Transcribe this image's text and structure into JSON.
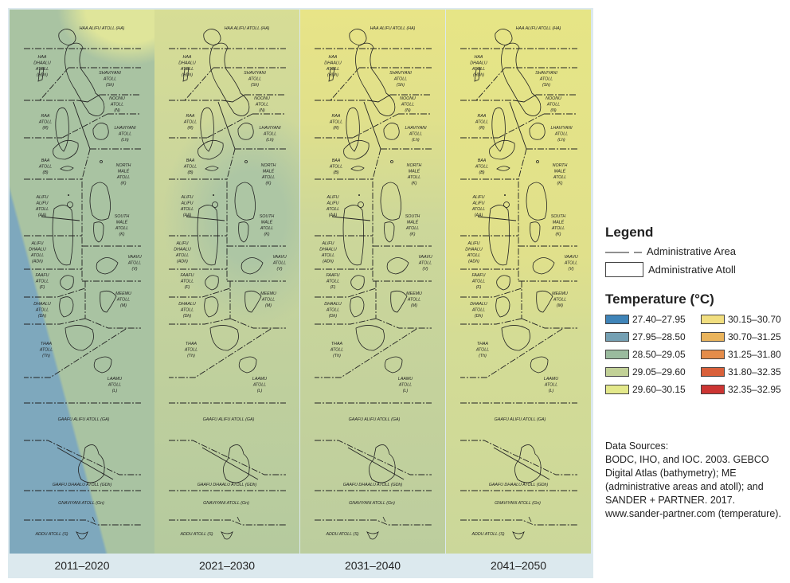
{
  "periods": [
    "2011–2020",
    "2021–2030",
    "2031–2040",
    "2041–2050"
  ],
  "atolls": [
    {
      "lines": [
        "HAA ALIFU ATOLL (HA)"
      ]
    },
    {
      "lines": [
        "HAA",
        "DHAALU",
        "ATOLL",
        "(HDh)"
      ]
    },
    {
      "lines": [
        "SHAVIYANI",
        "ATOLL",
        "(Sh)"
      ]
    },
    {
      "lines": [
        "NOONU",
        "ATOLL",
        "(N)"
      ]
    },
    {
      "lines": [
        "RAA",
        "ATOLL",
        "(R)"
      ]
    },
    {
      "lines": [
        "LHAVIYANI",
        "ATOLL",
        "(Lh)"
      ]
    },
    {
      "lines": [
        "BAA",
        "ATOLL",
        "(B)"
      ]
    },
    {
      "lines": [
        "NORTH",
        "MALÉ",
        "ATOLL",
        "(K)"
      ]
    },
    {
      "lines": [
        "ALIFU",
        "ALIFU",
        "ATOLL",
        "(AA)"
      ]
    },
    {
      "lines": [
        "SOUTH",
        "MALÉ",
        "ATOLL",
        "(K)"
      ]
    },
    {
      "lines": [
        "ALIFU",
        "DHAALU",
        "ATOLL",
        "(ADh)"
      ]
    },
    {
      "lines": [
        "VAAVU",
        "ATOLL",
        "(V)"
      ]
    },
    {
      "lines": [
        "FAAFU",
        "ATOLL",
        "(F)"
      ]
    },
    {
      "lines": [
        "MEEMU",
        "ATOLL",
        "(M)"
      ]
    },
    {
      "lines": [
        "DHAALU",
        "ATOLL",
        "(Dh)"
      ]
    },
    {
      "lines": [
        "THAA",
        "ATOLL",
        "(Th)"
      ]
    },
    {
      "lines": [
        "LAAMU",
        "ATOLL",
        "(L)"
      ]
    },
    {
      "lines": [
        "GAAFU ALIFU ATOLL (GA)"
      ]
    },
    {
      "lines": [
        "GAAFU DHAALU ATOLL (GDh)"
      ]
    },
    {
      "lines": [
        "GNAVIYANI ATOLL (Gn)"
      ]
    },
    {
      "lines": [
        "ADDU ATOLL (S)"
      ]
    }
  ],
  "legend": {
    "title": "Legend",
    "admin_area": "Administrative Area",
    "admin_atoll": "Administrative Atoll",
    "temp_title": "Temperature (°C)",
    "classes": [
      {
        "range": "27.40–27.95",
        "color": "#3f84b8"
      },
      {
        "range": "27.95–28.50",
        "color": "#74a0b3"
      },
      {
        "range": "28.50–29.05",
        "color": "#9abb9e"
      },
      {
        "range": "29.05–29.60",
        "color": "#c2d197"
      },
      {
        "range": "29.60–30.15",
        "color": "#e3e88b"
      },
      {
        "range": "30.15–30.70",
        "color": "#f1de7f"
      },
      {
        "range": "30.70–31.25",
        "color": "#eab45c"
      },
      {
        "range": "31.25–31.80",
        "color": "#e48c4a"
      },
      {
        "range": "31.80–32.35",
        "color": "#d9603a"
      },
      {
        "range": "32.35–32.95",
        "color": "#cc3533"
      }
    ]
  },
  "sources": {
    "heading": "Data Sources:",
    "text": "BODC, IHO, and IOC. 2003. GEBCO Digital Atlas (bathymetry); ME (administrative areas and atoll); and SANDER + PARTNER. 2017. www.sander-partner.com (temperature)."
  }
}
